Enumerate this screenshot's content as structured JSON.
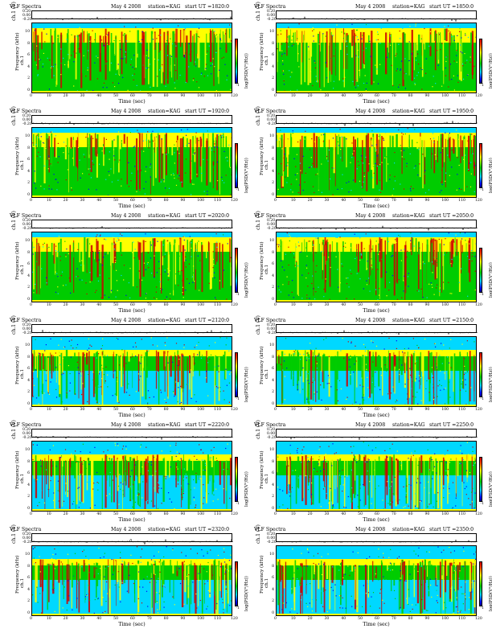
{
  "header": {
    "title": "VLF Spectra",
    "date": "May 4 2008",
    "station": "station=KAG"
  },
  "labels": {
    "wave_ylabel": "ch.1 (V)",
    "freq_ylabel": "Frequency (kHz)",
    "freq_ylabel_prefix": "ch.1",
    "colorbar_label": "log(PSD(V²/Hz))",
    "xlabel": "Time (sec)"
  },
  "panels": [
    {
      "start_label": "start  UT =1820:0"
    },
    {
      "start_label": "start  UT =1850:0"
    },
    {
      "start_label": "start  UT =1920:0"
    },
    {
      "start_label": "start  UT =1950:0"
    },
    {
      "start_label": "start  UT =2020:0"
    },
    {
      "start_label": "start  UT =2050:0"
    },
    {
      "start_label": "start  UT =2120:0"
    },
    {
      "start_label": "start  UT =2150:0"
    },
    {
      "start_label": "start  UT =2220:0"
    },
    {
      "start_label": "start  UT =2250:0"
    },
    {
      "start_label": "start  UT =2320:0"
    },
    {
      "start_label": "start  UT =2350:0"
    }
  ],
  "colors": {
    "high": "#cc0000",
    "mid_high": "#ffff00",
    "mid": "#00cc00",
    "low": "#00d8ff",
    "lowest": "#0000ff"
  },
  "chart_data": {
    "type": "heatmap",
    "x_range": [
      0,
      120
    ],
    "x_ticks": [
      "0",
      "10",
      "20",
      "30",
      "40",
      "50",
      "60",
      "70",
      "80",
      "90",
      "100",
      "110",
      "120"
    ],
    "y_range_kHz": [
      0,
      10
    ],
    "y_ticks": [
      "0",
      "2",
      "4",
      "6",
      "8",
      "10"
    ],
    "wave_ticks": [
      "0.20",
      "0.00",
      "-0.20"
    ],
    "cbar_ticks": [
      "-1"
    ],
    "grid": false,
    "layout": "6 rows x 2 columns of spectrogram panels"
  }
}
